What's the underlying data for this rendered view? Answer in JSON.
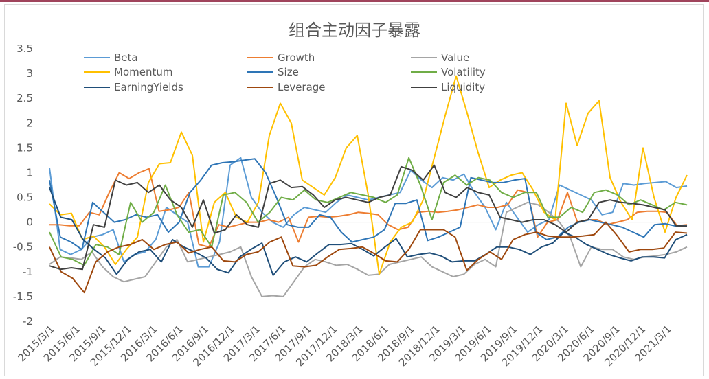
{
  "chart_data": {
    "type": "line",
    "title": "组合主动因子暴露",
    "xlabel": "",
    "ylabel": "",
    "ylim": [
      -2,
      3.5
    ],
    "yticks": [
      3.5,
      3,
      2.5,
      2,
      1.5,
      1,
      0.5,
      0,
      -0.5,
      -1,
      -1.5,
      -2
    ],
    "ytick_labels": [
      "3.5",
      "3",
      "2.5",
      "2",
      "1.5",
      "1",
      "0.5",
      "0",
      "-0.5",
      "-1",
      "-1.5",
      "-2"
    ],
    "xtick_labels": [
      "2015/3/1",
      "2015/6/1",
      "2015/9/1",
      "2015/12/1",
      "2016/3/1",
      "2016/6/1",
      "2016/9/1",
      "2016/12/1",
      "2017/3/1",
      "2017/6/1",
      "2017/9/1",
      "2017/12/1",
      "2018/3/1",
      "2018/6/1",
      "2018/9/1",
      "2018/12/1",
      "2019/3/1",
      "2019/6/1",
      "2019/9/1",
      "2019/12/1",
      "2020/3/1",
      "2020/6/1",
      "2020/9/1",
      "2020/12/1",
      "2021/3/1"
    ],
    "grid": false,
    "legend_position": "top",
    "x_start": "2015/3/1",
    "x_step": "1 month",
    "series": [
      {
        "name": "Beta",
        "color": "#5b9bd5",
        "values": [
          1.1,
          -0.55,
          -0.65,
          -0.55,
          -0.3,
          -0.25,
          -0.15,
          -0.8,
          -0.65,
          -0.6,
          -0.35,
          0.3,
          0.15,
          0.0,
          -0.9,
          -0.9,
          -0.4,
          1.15,
          1.3,
          0.5,
          0.2,
          0.0,
          -0.1,
          0.15,
          0.3,
          0.25,
          0.2,
          0.4,
          0.55,
          0.5,
          0.45,
          0.5,
          0.55,
          0.6,
          1.05,
          0.85,
          0.7,
          0.9,
          0.85,
          0.97,
          0.6,
          0.3,
          -0.15,
          0.4,
          0.1,
          -0.2,
          -0.05,
          0.05,
          0.75,
          0.65,
          0.55,
          0.45,
          0.15,
          0.2,
          0.78,
          0.75,
          0.78,
          0.8,
          0.82,
          0.7,
          0.73
        ]
      },
      {
        "name": "Growth",
        "color": "#ed7d31",
        "values": [
          -0.05,
          -0.05,
          -0.07,
          -0.07,
          0.2,
          0.15,
          0.6,
          1.0,
          0.88,
          1.0,
          1.08,
          0.22,
          0.25,
          0.3,
          0.6,
          -0.45,
          -0.5,
          -0.05,
          -0.1,
          -0.05,
          0.0,
          0.0,
          0.05,
          0.0,
          0.1,
          -0.4,
          0.1,
          0.12,
          0.1,
          0.12,
          0.15,
          0.2,
          0.18,
          0.15,
          -0.05,
          -0.15,
          -0.1,
          0.2,
          0.22,
          0.2,
          0.22,
          0.25,
          0.3,
          0.35,
          0.3,
          0.3,
          0.35,
          0.65,
          0.6,
          -0.3,
          0.0,
          0.05,
          0.6,
          0.0,
          0.05,
          0.05,
          -0.05,
          0.0,
          0.05,
          0.2,
          0.22,
          0.22,
          0.2,
          -0.07,
          -0.05
        ]
      },
      {
        "name": "Value",
        "color": "#a5a5a5",
        "values": [
          -0.85,
          -0.7,
          -0.72,
          -0.75,
          -0.6,
          -0.9,
          -1.1,
          -1.2,
          -1.15,
          -1.1,
          -0.8,
          -0.5,
          -0.35,
          -0.8,
          -0.75,
          -0.7,
          -0.65,
          -0.6,
          -0.5,
          -1.1,
          -1.5,
          -1.48,
          -1.5,
          -1.2,
          -0.9,
          -0.75,
          -0.8,
          -0.87,
          -0.85,
          -0.95,
          -1.07,
          -1.05,
          -0.85,
          -0.8,
          -0.75,
          -0.7,
          -0.9,
          -1.0,
          -1.1,
          -1.05,
          -0.85,
          -0.75,
          -0.9,
          0.2,
          0.3,
          0.4,
          0.35,
          0.2,
          0.0,
          -0.3,
          -0.9,
          -0.5,
          -0.55,
          -0.55,
          -0.7,
          -0.75,
          -0.7,
          -0.68,
          -0.65,
          -0.6,
          -0.5
        ]
      },
      {
        "name": "Momentum",
        "color": "#ffc000",
        "values": [
          0.37,
          0.15,
          0.18,
          -0.35,
          -0.28,
          -0.5,
          -0.85,
          -0.55,
          -0.3,
          0.8,
          1.18,
          1.2,
          1.82,
          1.35,
          -0.4,
          0.4,
          0.6,
          0.1,
          0.0,
          0.4,
          1.75,
          2.4,
          2.0,
          0.85,
          0.7,
          0.55,
          0.9,
          1.5,
          1.75,
          0.55,
          -1.05,
          -0.4,
          -0.1,
          0.0,
          0.45,
          1.3,
          2.15,
          2.95,
          2.2,
          1.4,
          0.7,
          0.85,
          0.95,
          1.0,
          0.65,
          0.2,
          0.05,
          2.4,
          1.55,
          2.2,
          2.45,
          0.9,
          0.4,
          0.05,
          1.5,
          0.5,
          -0.2,
          0.5,
          0.95
        ]
      },
      {
        "name": "Size",
        "color": "#2e75b6",
        "values": [
          0.85,
          -0.3,
          -0.4,
          -0.55,
          0.4,
          0.2,
          0.0,
          0.05,
          0.15,
          0.1,
          0.15,
          -0.2,
          0.0,
          0.6,
          0.85,
          1.15,
          1.2,
          1.22,
          1.25,
          1.28,
          1.0,
          0.5,
          -0.05,
          -0.1,
          -0.1,
          0.15,
          0.1,
          -0.2,
          -0.4,
          -0.35,
          -0.3,
          -0.15,
          0.38,
          0.38,
          0.45,
          -0.37,
          -0.3,
          -0.2,
          -0.1,
          0.9,
          0.85,
          0.8,
          0.8,
          0.85,
          0.88,
          -0.2,
          -0.35,
          -0.3,
          -0.1,
          0.0,
          0.05,
          0.0,
          -0.05,
          -0.1,
          -0.2,
          -0.3,
          -0.05,
          -0.03,
          -0.08,
          -0.07
        ]
      },
      {
        "name": "Volatility",
        "color": "#70ad47",
        "values": [
          -0.2,
          -0.7,
          -0.75,
          -0.87,
          -0.45,
          -0.5,
          -0.65,
          0.4,
          0.0,
          0.2,
          0.75,
          0.15,
          -0.2,
          -0.15,
          -0.5,
          0.55,
          0.6,
          0.4,
          0.0,
          0.2,
          0.5,
          0.45,
          0.65,
          0.45,
          0.4,
          0.5,
          0.6,
          0.55,
          0.5,
          0.4,
          0.55,
          1.3,
          0.75,
          0.05,
          0.8,
          0.95,
          0.75,
          0.9,
          0.85,
          0.6,
          0.5,
          0.6,
          0.6,
          0.1,
          0.1,
          0.3,
          0.2,
          0.6,
          0.65,
          0.55,
          0.35,
          0.45,
          0.35,
          0.25,
          0.4,
          0.35
        ]
      },
      {
        "name": "EarningYields",
        "color": "#1f4e79",
        "values": [
          0.7,
          0.1,
          0.05,
          -0.35,
          -0.55,
          -0.72,
          -1.05,
          -0.75,
          -0.6,
          -0.55,
          -0.8,
          -0.35,
          -0.5,
          -0.6,
          -0.72,
          -0.95,
          -1.02,
          -0.7,
          -0.55,
          -0.42,
          -1.07,
          -0.8,
          -0.7,
          -0.8,
          -0.62,
          -0.45,
          -0.45,
          -0.43,
          -0.55,
          -0.68,
          -0.5,
          -0.33,
          -0.7,
          -0.65,
          -0.62,
          -0.68,
          -0.8,
          -0.78,
          -0.78,
          -0.65,
          -0.5,
          -0.5,
          -0.55,
          -0.65,
          -0.5,
          -0.42,
          -0.2,
          -0.3,
          -0.45,
          -0.55,
          -0.65,
          -0.72,
          -0.78,
          -0.7,
          -0.7,
          -0.72,
          -0.35,
          -0.25
        ]
      },
      {
        "name": "Leverage",
        "color": "#9e480e",
        "values": [
          -0.5,
          -1.0,
          -1.13,
          -1.42,
          -0.8,
          -0.6,
          -0.5,
          -0.45,
          -0.35,
          -0.55,
          -0.45,
          -0.4,
          -0.62,
          -0.55,
          -0.5,
          -0.78,
          -0.8,
          -0.65,
          -0.6,
          -0.4,
          -0.3,
          -0.88,
          -0.9,
          -0.87,
          -0.7,
          -0.55,
          -0.53,
          -0.5,
          -0.63,
          -0.78,
          -0.8,
          -0.55,
          -0.15,
          -0.15,
          -0.15,
          -0.3,
          -0.97,
          -0.75,
          -0.6,
          -0.75,
          -0.35,
          -0.25,
          -0.2,
          -0.28,
          -0.3,
          -0.3,
          -0.28,
          -0.25,
          0.0,
          -0.28,
          -0.6,
          -0.55,
          -0.55,
          -0.52,
          -0.2,
          -0.22
        ]
      },
      {
        "name": "Liquidity",
        "color": "#404040",
        "values": [
          -0.88,
          -0.95,
          -0.92,
          -0.95,
          -0.05,
          -0.1,
          0.85,
          0.75,
          0.8,
          0.6,
          0.75,
          0.45,
          0.3,
          -0.1,
          0.45,
          -0.22,
          -0.15,
          0.15,
          -0.05,
          -0.1,
          0.78,
          0.85,
          0.7,
          0.72,
          0.55,
          0.3,
          0.45,
          0.5,
          0.45,
          0.4,
          0.5,
          0.55,
          1.12,
          1.05,
          0.85,
          1.15,
          0.6,
          0.5,
          0.7,
          0.6,
          0.55,
          0.1,
          0.05,
          0.0,
          0.05,
          0.05,
          -0.05,
          -0.2,
          0.0,
          0.05,
          0.4,
          0.45,
          0.4,
          0.38,
          0.35,
          0.3,
          0.25,
          -0.07,
          -0.08
        ]
      }
    ]
  }
}
